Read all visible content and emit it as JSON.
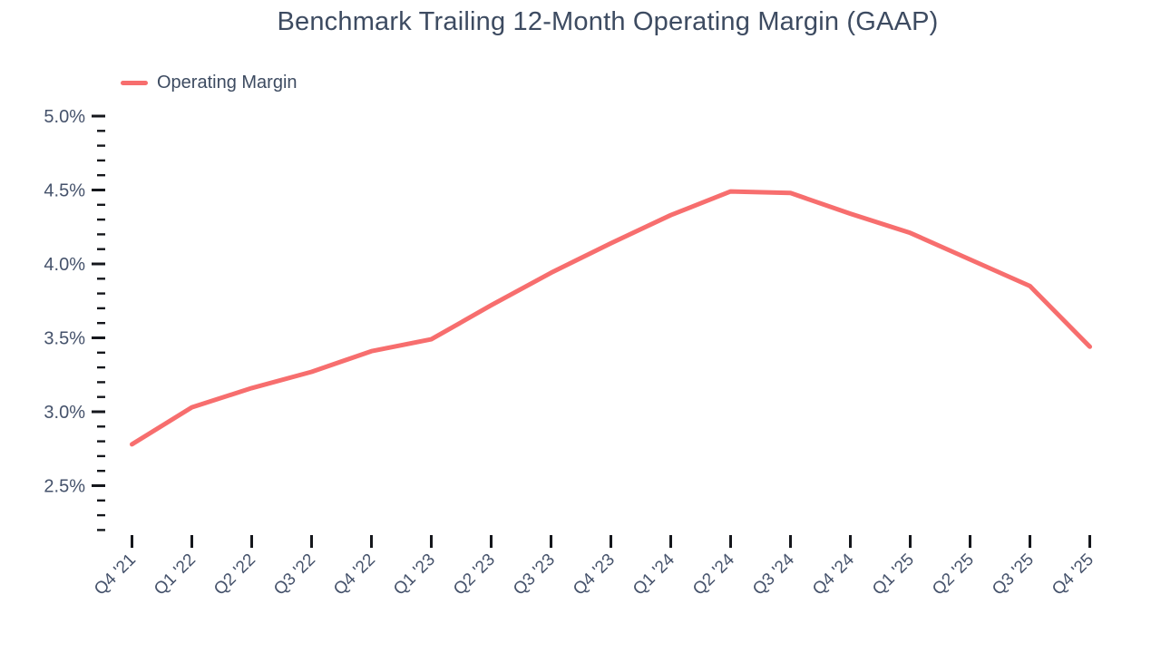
{
  "page": {
    "background": "#ffffff"
  },
  "chart_data": {
    "type": "line",
    "title": "Benchmark Trailing 12-Month Operating Margin (GAAP)",
    "categories": [
      "Q4 '21",
      "Q1 '22",
      "Q2 '22",
      "Q3 '22",
      "Q4 '22",
      "Q1 '23",
      "Q2 '23",
      "Q3 '23",
      "Q4 '23",
      "Q1 '24",
      "Q2 '24",
      "Q3 '24",
      "Q4 '24",
      "Q1 '25",
      "Q2 '25",
      "Q3 '25",
      "Q4 '25"
    ],
    "series": [
      {
        "name": "Operating Margin",
        "color": "#f76e6e",
        "values": [
          2.78,
          3.03,
          3.16,
          3.27,
          3.41,
          3.49,
          3.72,
          3.94,
          4.14,
          4.33,
          4.49,
          4.48,
          4.34,
          4.21,
          4.03,
          3.85,
          3.44
        ]
      }
    ],
    "xlabel": "",
    "ylabel": "",
    "y_axis": {
      "min": 2.2,
      "max": 5.0,
      "minor_step": 0.1,
      "major_step": 0.5,
      "major_tick_labels": [
        "5.0%",
        "4.5%",
        "4.0%",
        "3.5%",
        "3.0%",
        "2.5%"
      ],
      "unit": "%"
    },
    "legend_position": "top-left",
    "grid": "off",
    "axis_lines": "none",
    "text_color": "#45526b",
    "title_color": "#3d4b61",
    "tick_color": "#15171c"
  }
}
